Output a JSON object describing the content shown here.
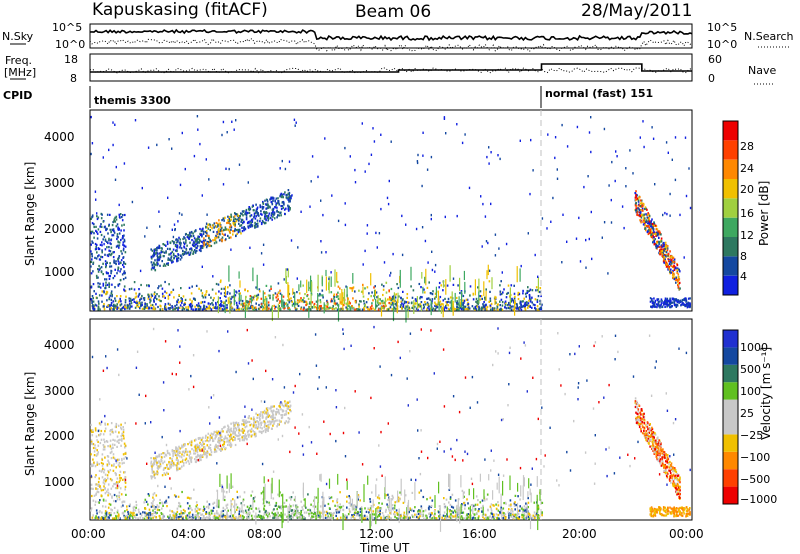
{
  "header": {
    "station": "Kapuskasing (fitACF)",
    "beam": "Beam 06",
    "date": "28/May/2011"
  },
  "top_panels": {
    "nsky_label": "N.Sky",
    "nsky_ticks": [
      "10^5",
      "10^0"
    ],
    "nsky_right_ticks": [
      "10^5",
      "10^0"
    ],
    "nsearch_label": "N.Search",
    "freq_label": "Freq.",
    "freq_unit": "[MHz]",
    "freq_ticks": [
      "18",
      "8"
    ],
    "nave_ticks": [
      "60",
      "0"
    ],
    "nave_label": "Nave",
    "cpid_label": "CPID",
    "cpid_segments": [
      "themis 3300",
      "normal (fast) 151"
    ]
  },
  "colors": {
    "power_scale": [
      "#1020e0",
      "#1448a0",
      "#2e7860",
      "#3ea860",
      "#a0d040",
      "#f0c000",
      "#ff8800",
      "#ff4000",
      "#ee0000"
    ],
    "velocity_scale": [
      "#ee0000",
      "#ff4000",
      "#ff8800",
      "#f0c000",
      "#c8c8c8",
      "#c8c8c8",
      "#60c020",
      "#2e7860",
      "#1448a0",
      "#2030d0"
    ],
    "divider": "#c0c0c0"
  },
  "chart_data": [
    {
      "type": "heatmap",
      "name": "power",
      "ylabel": "Slant Range [km]",
      "y_ticks": [
        "1000",
        "2000",
        "3000",
        "4000"
      ],
      "ylim": [
        200,
        4500
      ],
      "colorbar_label": "Power [dB]",
      "colorbar_ticks": [
        "4",
        "8",
        "12",
        "16",
        "20",
        "24",
        "28"
      ],
      "clim": [
        0,
        30
      ]
    },
    {
      "type": "heatmap",
      "name": "velocity",
      "ylabel": "Slant Range [km]",
      "y_ticks": [
        "1000",
        "2000",
        "3000",
        "4000"
      ],
      "ylim": [
        200,
        4500
      ],
      "xlabel": "Time UT",
      "x_ticks": [
        "00:00",
        "04:00",
        "08:00",
        "12:00",
        "16:00",
        "20:00",
        "00:00"
      ],
      "colorbar_label": "Velocity [m s⁻¹]",
      "colorbar_ticks": [
        "1000",
        "500",
        "100",
        "25",
        "−25",
        "−100",
        "−500",
        "−1000"
      ]
    }
  ]
}
